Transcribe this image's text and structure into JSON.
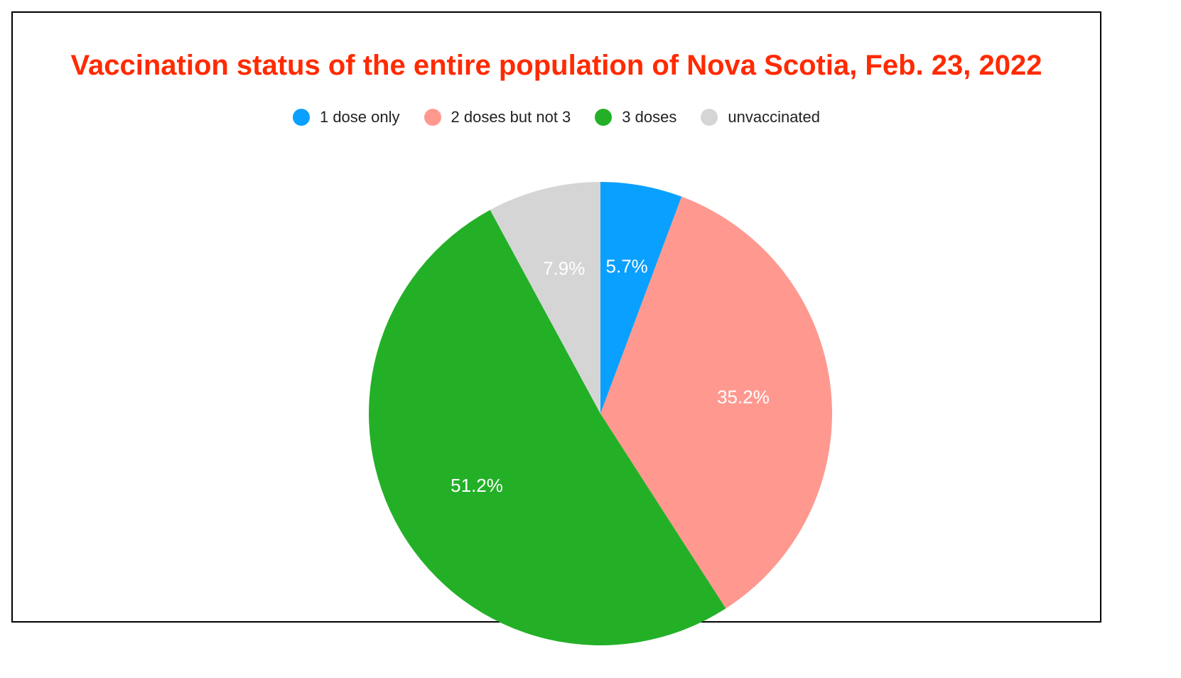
{
  "chart_data": {
    "type": "pie",
    "title": "Vaccination status of the entire population of Nova Scotia, Feb. 23, 2022",
    "legend_position": "top",
    "slices": [
      {
        "label": "1 dose only",
        "value": 5.7,
        "display": "5.7%",
        "color": "#0aa0ff"
      },
      {
        "label": "2 doses but not 3",
        "value": 35.2,
        "display": "35.2%",
        "color": "#ff9990"
      },
      {
        "label": "3 doses",
        "value": 51.2,
        "display": "51.2%",
        "color": "#23b027"
      },
      {
        "label": "unvaccinated",
        "value": 7.9,
        "display": "7.9%",
        "color": "#d5d5d5"
      }
    ]
  },
  "colors": {
    "title": "#ff2a00"
  }
}
